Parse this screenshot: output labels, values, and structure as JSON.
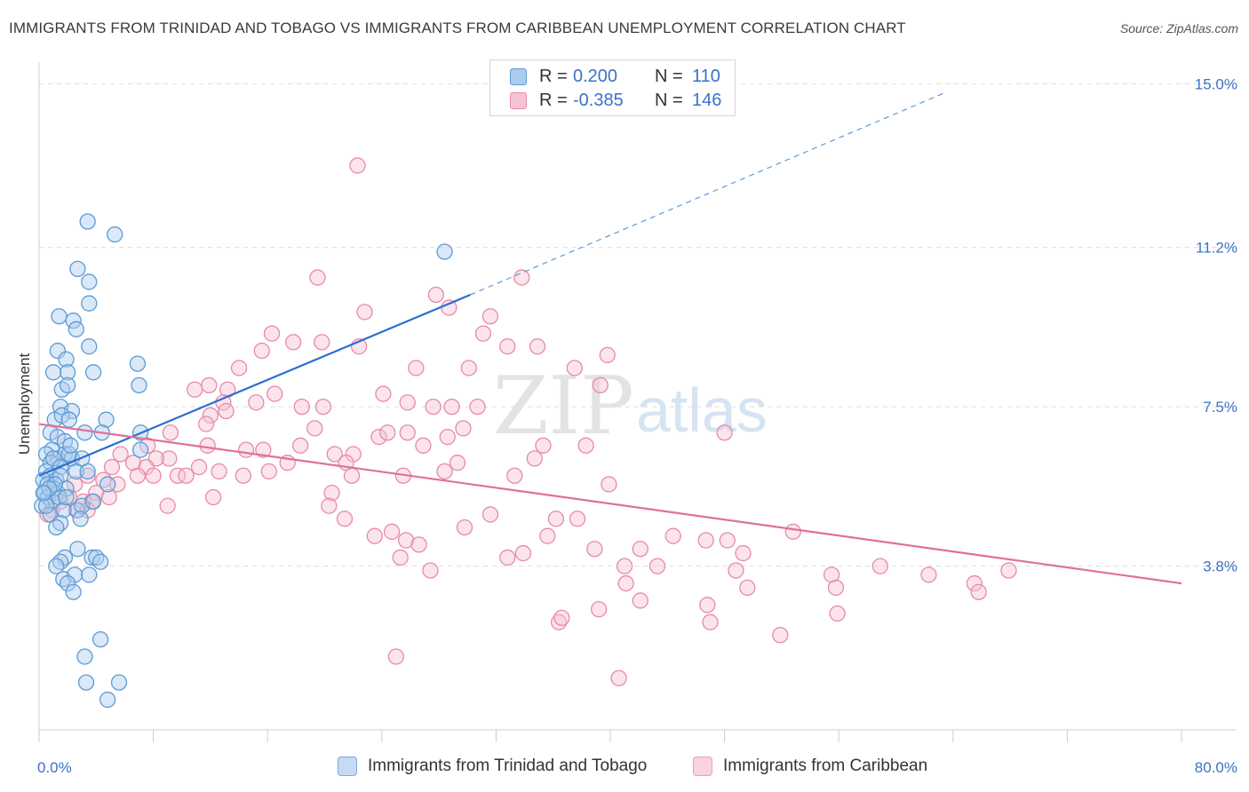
{
  "title": "IMMIGRANTS FROM TRINIDAD AND TOBAGO VS IMMIGRANTS FROM CARIBBEAN UNEMPLOYMENT CORRELATION CHART",
  "source": "Source: ZipAtlas.com",
  "watermark": {
    "zip": "ZIP",
    "atlas": "atlas"
  },
  "legend": {
    "rows": [
      {
        "r_label": "R =",
        "r_value": "0.200",
        "n_label": "N =",
        "n_value": "110"
      },
      {
        "r_label": "R =",
        "r_value": "-0.385",
        "n_label": "N =",
        "n_value": "146"
      }
    ]
  },
  "colors": {
    "blue": "#5b9bd5",
    "blue_fill": "#aecbee",
    "blue_line": "#2b6fd0",
    "pink": "#e88aa8",
    "pink_fill": "#f6c3d3",
    "pink_line": "#e0709a",
    "value_text": "#3a72c8",
    "grid": "#dddddd"
  },
  "chart_data": {
    "type": "scatter",
    "xlabel": "",
    "ylabel": "Unemployment",
    "xlim": [
      0,
      80
    ],
    "ylim": [
      0,
      15.5
    ],
    "x_tick_labels": [
      "0.0%",
      "80.0%"
    ],
    "y_ticks": [
      3.8,
      7.5,
      11.2,
      15.0
    ],
    "y_tick_labels": [
      "3.8%",
      "7.5%",
      "11.2%",
      "15.0%"
    ],
    "grid": true,
    "legend_position": "bottom",
    "series": [
      {
        "name": "Immigrants from Trinidad and Tobago",
        "color": "blue",
        "trend": {
          "x0": 0,
          "y0": 5.9,
          "x1": 30.2,
          "y1": 10.1,
          "dashed_to_x": 63.5,
          "dashed_to_y": 14.8
        },
        "points": [
          [
            3.4,
            11.8
          ],
          [
            5.3,
            11.5
          ],
          [
            2.7,
            10.7
          ],
          [
            3.5,
            10.4
          ],
          [
            1.4,
            9.6
          ],
          [
            2.4,
            9.5
          ],
          [
            2.6,
            9.3
          ],
          [
            1.3,
            8.8
          ],
          [
            3.5,
            8.9
          ],
          [
            3.5,
            9.9
          ],
          [
            1.9,
            8.6
          ],
          [
            2.0,
            8.3
          ],
          [
            3.8,
            8.3
          ],
          [
            6.9,
            8.5
          ],
          [
            1.0,
            8.3
          ],
          [
            1.6,
            7.9
          ],
          [
            2.0,
            8.0
          ],
          [
            7.0,
            8.0
          ],
          [
            1.5,
            7.5
          ],
          [
            2.3,
            7.4
          ],
          [
            1.1,
            7.2
          ],
          [
            1.6,
            7.3
          ],
          [
            2.1,
            7.2
          ],
          [
            4.7,
            7.2
          ],
          [
            0.8,
            6.9
          ],
          [
            1.3,
            6.8
          ],
          [
            3.2,
            6.9
          ],
          [
            4.4,
            6.9
          ],
          [
            7.1,
            6.9
          ],
          [
            1.8,
            6.7
          ],
          [
            0.9,
            6.5
          ],
          [
            1.3,
            6.3
          ],
          [
            1.8,
            6.4
          ],
          [
            2.3,
            6.3
          ],
          [
            0.5,
            6.4
          ],
          [
            0.8,
            6.2
          ],
          [
            1.0,
            6.3
          ],
          [
            1.5,
            6.1
          ],
          [
            2.6,
            6.0
          ],
          [
            3.4,
            6.0
          ],
          [
            0.5,
            6.0
          ],
          [
            0.8,
            5.9
          ],
          [
            1.2,
            5.8
          ],
          [
            1.5,
            5.9
          ],
          [
            0.3,
            5.8
          ],
          [
            0.6,
            5.7
          ],
          [
            1.0,
            5.6
          ],
          [
            1.3,
            5.5
          ],
          [
            1.9,
            5.6
          ],
          [
            4.8,
            5.7
          ],
          [
            0.4,
            5.5
          ],
          [
            0.6,
            5.4
          ],
          [
            0.9,
            5.3
          ],
          [
            1.4,
            5.4
          ],
          [
            0.2,
            5.2
          ],
          [
            2.7,
            5.1
          ],
          [
            3.0,
            5.2
          ],
          [
            3.8,
            5.3
          ],
          [
            0.8,
            5.0
          ],
          [
            1.7,
            5.1
          ],
          [
            2.9,
            4.9
          ],
          [
            1.5,
            4.8
          ],
          [
            0.5,
            5.2
          ],
          [
            1.2,
            4.7
          ],
          [
            2.7,
            4.2
          ],
          [
            3.7,
            4.0
          ],
          [
            4.0,
            4.0
          ],
          [
            1.8,
            4.0
          ],
          [
            1.5,
            3.9
          ],
          [
            1.7,
            3.5
          ],
          [
            1.2,
            3.8
          ],
          [
            2.5,
            3.6
          ],
          [
            3.5,
            3.6
          ],
          [
            2.0,
            3.4
          ],
          [
            2.4,
            3.2
          ],
          [
            4.3,
            3.9
          ],
          [
            4.3,
            2.1
          ],
          [
            3.2,
            1.7
          ],
          [
            3.3,
            1.1
          ],
          [
            5.6,
            1.1
          ],
          [
            4.8,
            0.7
          ],
          [
            28.4,
            11.1
          ],
          [
            7.1,
            6.5
          ],
          [
            3.0,
            6.3
          ],
          [
            2.1,
            6.4
          ],
          [
            1.1,
            5.7
          ],
          [
            1.9,
            5.4
          ],
          [
            0.7,
            5.6
          ],
          [
            0.3,
            5.5
          ],
          [
            2.2,
            6.6
          ]
        ]
      },
      {
        "name": "Immigrants from Caribbean",
        "color": "pink",
        "trend": {
          "x0": 0,
          "y0": 7.1,
          "x1": 80,
          "y1": 3.4
        },
        "points": [
          [
            22.3,
            13.1
          ],
          [
            19.5,
            10.5
          ],
          [
            33.8,
            10.5
          ],
          [
            27.8,
            10.1
          ],
          [
            28.7,
            9.8
          ],
          [
            22.8,
            9.7
          ],
          [
            31.6,
            9.6
          ],
          [
            16.3,
            9.2
          ],
          [
            31.1,
            9.2
          ],
          [
            17.8,
            9.0
          ],
          [
            19.8,
            9.0
          ],
          [
            34.9,
            8.9
          ],
          [
            32.8,
            8.9
          ],
          [
            15.6,
            8.8
          ],
          [
            22.4,
            8.9
          ],
          [
            39.8,
            8.7
          ],
          [
            14.0,
            8.4
          ],
          [
            26.4,
            8.4
          ],
          [
            30.1,
            8.4
          ],
          [
            37.5,
            8.4
          ],
          [
            10.9,
            7.9
          ],
          [
            11.9,
            8.0
          ],
          [
            13.2,
            7.9
          ],
          [
            39.3,
            8.0
          ],
          [
            24.1,
            7.8
          ],
          [
            16.5,
            7.8
          ],
          [
            12.9,
            7.6
          ],
          [
            15.2,
            7.6
          ],
          [
            18.4,
            7.5
          ],
          [
            19.9,
            7.5
          ],
          [
            25.8,
            7.6
          ],
          [
            27.6,
            7.5
          ],
          [
            28.9,
            7.5
          ],
          [
            30.7,
            7.5
          ],
          [
            12.0,
            7.3
          ],
          [
            11.7,
            7.1
          ],
          [
            29.7,
            7.0
          ],
          [
            9.2,
            6.9
          ],
          [
            19.3,
            7.0
          ],
          [
            23.8,
            6.8
          ],
          [
            25.8,
            6.9
          ],
          [
            28.6,
            6.8
          ],
          [
            48.0,
            6.9
          ],
          [
            11.8,
            6.6
          ],
          [
            18.3,
            6.6
          ],
          [
            26.9,
            6.6
          ],
          [
            35.3,
            6.6
          ],
          [
            38.3,
            6.6
          ],
          [
            14.5,
            6.5
          ],
          [
            15.7,
            6.5
          ],
          [
            9.1,
            6.3
          ],
          [
            20.7,
            6.4
          ],
          [
            22.0,
            6.4
          ],
          [
            34.7,
            6.3
          ],
          [
            5.7,
            6.4
          ],
          [
            8.2,
            6.3
          ],
          [
            17.4,
            6.2
          ],
          [
            21.5,
            6.2
          ],
          [
            29.3,
            6.2
          ],
          [
            11.2,
            6.1
          ],
          [
            6.6,
            6.2
          ],
          [
            7.5,
            6.1
          ],
          [
            12.6,
            6.0
          ],
          [
            14.3,
            5.9
          ],
          [
            16.1,
            6.0
          ],
          [
            28.4,
            6.0
          ],
          [
            5.1,
            6.1
          ],
          [
            6.9,
            5.9
          ],
          [
            8.0,
            5.9
          ],
          [
            9.7,
            5.9
          ],
          [
            21.9,
            5.9
          ],
          [
            25.5,
            5.9
          ],
          [
            33.3,
            5.9
          ],
          [
            3.4,
            5.9
          ],
          [
            4.5,
            5.8
          ],
          [
            5.5,
            5.7
          ],
          [
            10.3,
            5.9
          ],
          [
            2.5,
            5.7
          ],
          [
            4.0,
            5.5
          ],
          [
            20.5,
            5.5
          ],
          [
            39.9,
            5.7
          ],
          [
            2.1,
            5.4
          ],
          [
            3.1,
            5.3
          ],
          [
            3.7,
            5.3
          ],
          [
            4.9,
            5.4
          ],
          [
            12.2,
            5.4
          ],
          [
            1.5,
            5.3
          ],
          [
            2.6,
            5.1
          ],
          [
            3.4,
            5.1
          ],
          [
            9.0,
            5.2
          ],
          [
            20.3,
            5.2
          ],
          [
            0.9,
            5.1
          ],
          [
            0.6,
            5.0
          ],
          [
            21.4,
            4.9
          ],
          [
            31.6,
            5.0
          ],
          [
            36.2,
            4.9
          ],
          [
            37.7,
            4.9
          ],
          [
            24.7,
            4.6
          ],
          [
            29.8,
            4.7
          ],
          [
            23.5,
            4.5
          ],
          [
            35.6,
            4.5
          ],
          [
            25.7,
            4.4
          ],
          [
            26.6,
            4.3
          ],
          [
            44.4,
            4.5
          ],
          [
            46.7,
            4.4
          ],
          [
            48.2,
            4.4
          ],
          [
            52.8,
            4.6
          ],
          [
            38.9,
            4.2
          ],
          [
            42.1,
            4.2
          ],
          [
            33.9,
            4.1
          ],
          [
            49.3,
            4.1
          ],
          [
            25.3,
            4.0
          ],
          [
            32.8,
            4.0
          ],
          [
            41.0,
            3.8
          ],
          [
            43.3,
            3.8
          ],
          [
            48.8,
            3.7
          ],
          [
            27.4,
            3.7
          ],
          [
            55.5,
            3.6
          ],
          [
            58.9,
            3.8
          ],
          [
            62.3,
            3.6
          ],
          [
            65.5,
            3.4
          ],
          [
            41.1,
            3.4
          ],
          [
            49.6,
            3.3
          ],
          [
            55.8,
            3.3
          ],
          [
            65.8,
            3.2
          ],
          [
            42.1,
            3.0
          ],
          [
            46.8,
            2.9
          ],
          [
            39.2,
            2.8
          ],
          [
            55.9,
            2.7
          ],
          [
            36.4,
            2.5
          ],
          [
            36.6,
            2.6
          ],
          [
            47.0,
            2.5
          ],
          [
            51.9,
            2.2
          ],
          [
            25.0,
            1.7
          ],
          [
            40.6,
            1.2
          ],
          [
            67.9,
            3.7
          ],
          [
            13.1,
            7.4
          ],
          [
            24.4,
            6.9
          ],
          [
            7.6,
            6.6
          ]
        ]
      }
    ]
  },
  "bottom_legend": [
    "Immigrants from Trinidad and Tobago",
    "Immigrants from Caribbean"
  ]
}
